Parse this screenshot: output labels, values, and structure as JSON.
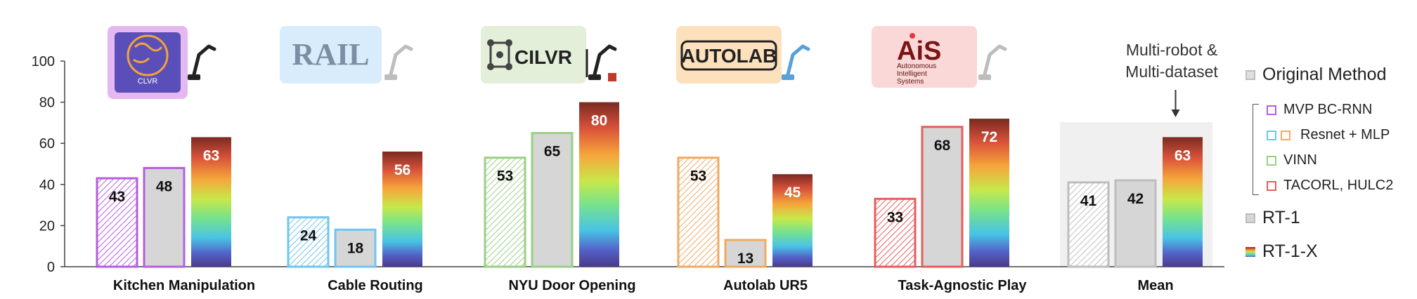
{
  "chart_data": {
    "type": "bar",
    "categories": [
      "Kitchen Manipulation",
      "Cable Routing",
      "NYU Door Opening",
      "Autolab UR5",
      "Task-Agnostic Play",
      "Mean"
    ],
    "series": [
      {
        "name": "Original Method",
        "values": [
          43,
          24,
          53,
          53,
          33,
          41
        ]
      },
      {
        "name": "RT-1",
        "values": [
          48,
          18,
          65,
          13,
          68,
          42
        ]
      },
      {
        "name": "RT-1-X",
        "values": [
          63,
          56,
          80,
          45,
          72,
          63
        ]
      }
    ],
    "ylim": [
      0,
      100
    ],
    "yticks": [
      0,
      20,
      40,
      60,
      80,
      100
    ],
    "original_method_colors": [
      "#b65ee0",
      "#6ec6f0",
      "#9bcf84",
      "#f0aa62",
      "#e85c5c",
      "#bdbdbd"
    ],
    "rt1_borders": [
      "#b65ee0",
      "#6ec6f0",
      "#9bcf84",
      "#f0aa62",
      "#e85c5c",
      "#bdbdbd"
    ],
    "rt1_fill": "#d6d6d6",
    "rainbow_colors": [
      "#7a2a22",
      "#d9533a",
      "#f6a53b",
      "#c7e84a",
      "#79e38a",
      "#48c3e6",
      "#5361c7",
      "#4a3a8a"
    ],
    "mean_panel_color": "#f0f0f0",
    "annotation": "Multi-robot & Multi-dataset",
    "logos": [
      {
        "text": "CLVR",
        "bg": "#e6b8f2"
      },
      {
        "text": "RAIL",
        "bg": "#d9ecfb"
      },
      {
        "text": "CILVR",
        "bg": "#e3efd9"
      },
      {
        "text": "AUTOLAB",
        "bg": "#fde1bd"
      },
      {
        "text": "AiS",
        "sub": "Autonomous Intelligent Systems",
        "bg": "#fbd8d8"
      }
    ]
  },
  "legend": {
    "original": "Original Method",
    "items": [
      {
        "label": "MVP BC-RNN",
        "colors": [
          "#b65ee0"
        ]
      },
      {
        "label": "Resnet + MLP",
        "colors": [
          "#6ec6f0",
          "#f0aa62"
        ]
      },
      {
        "label": "VINN",
        "colors": [
          "#9bcf84"
        ]
      },
      {
        "label": "TACORL, HULC2",
        "colors": [
          "#e85c5c"
        ]
      }
    ],
    "rt1": "RT-1",
    "rt1x": "RT-1-X"
  }
}
